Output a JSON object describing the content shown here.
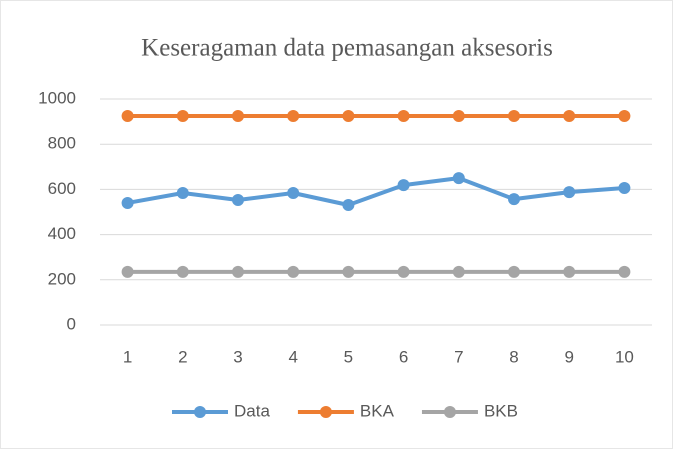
{
  "chart_data": {
    "type": "line",
    "title": "Keseragaman data pemasangan aksesoris",
    "categories": [
      1,
      2,
      3,
      4,
      5,
      6,
      7,
      8,
      9,
      10
    ],
    "series": [
      {
        "name": "Data",
        "color": "#5b9bd5",
        "values": [
          540,
          584,
          553,
          584,
          531,
          619,
          650,
          557,
          588,
          606
        ]
      },
      {
        "name": "BKA",
        "color": "#ed7d31",
        "values": [
          925,
          925,
          925,
          925,
          925,
          925,
          925,
          925,
          925,
          925
        ]
      },
      {
        "name": "BKB",
        "color": "#a5a5a5",
        "values": [
          235,
          235,
          235,
          235,
          235,
          235,
          235,
          235,
          235,
          235
        ]
      }
    ],
    "ylim": [
      0,
      1000
    ],
    "yticks": [
      0,
      200,
      400,
      600,
      800,
      1000
    ],
    "grid": true,
    "legend": "bottom"
  }
}
